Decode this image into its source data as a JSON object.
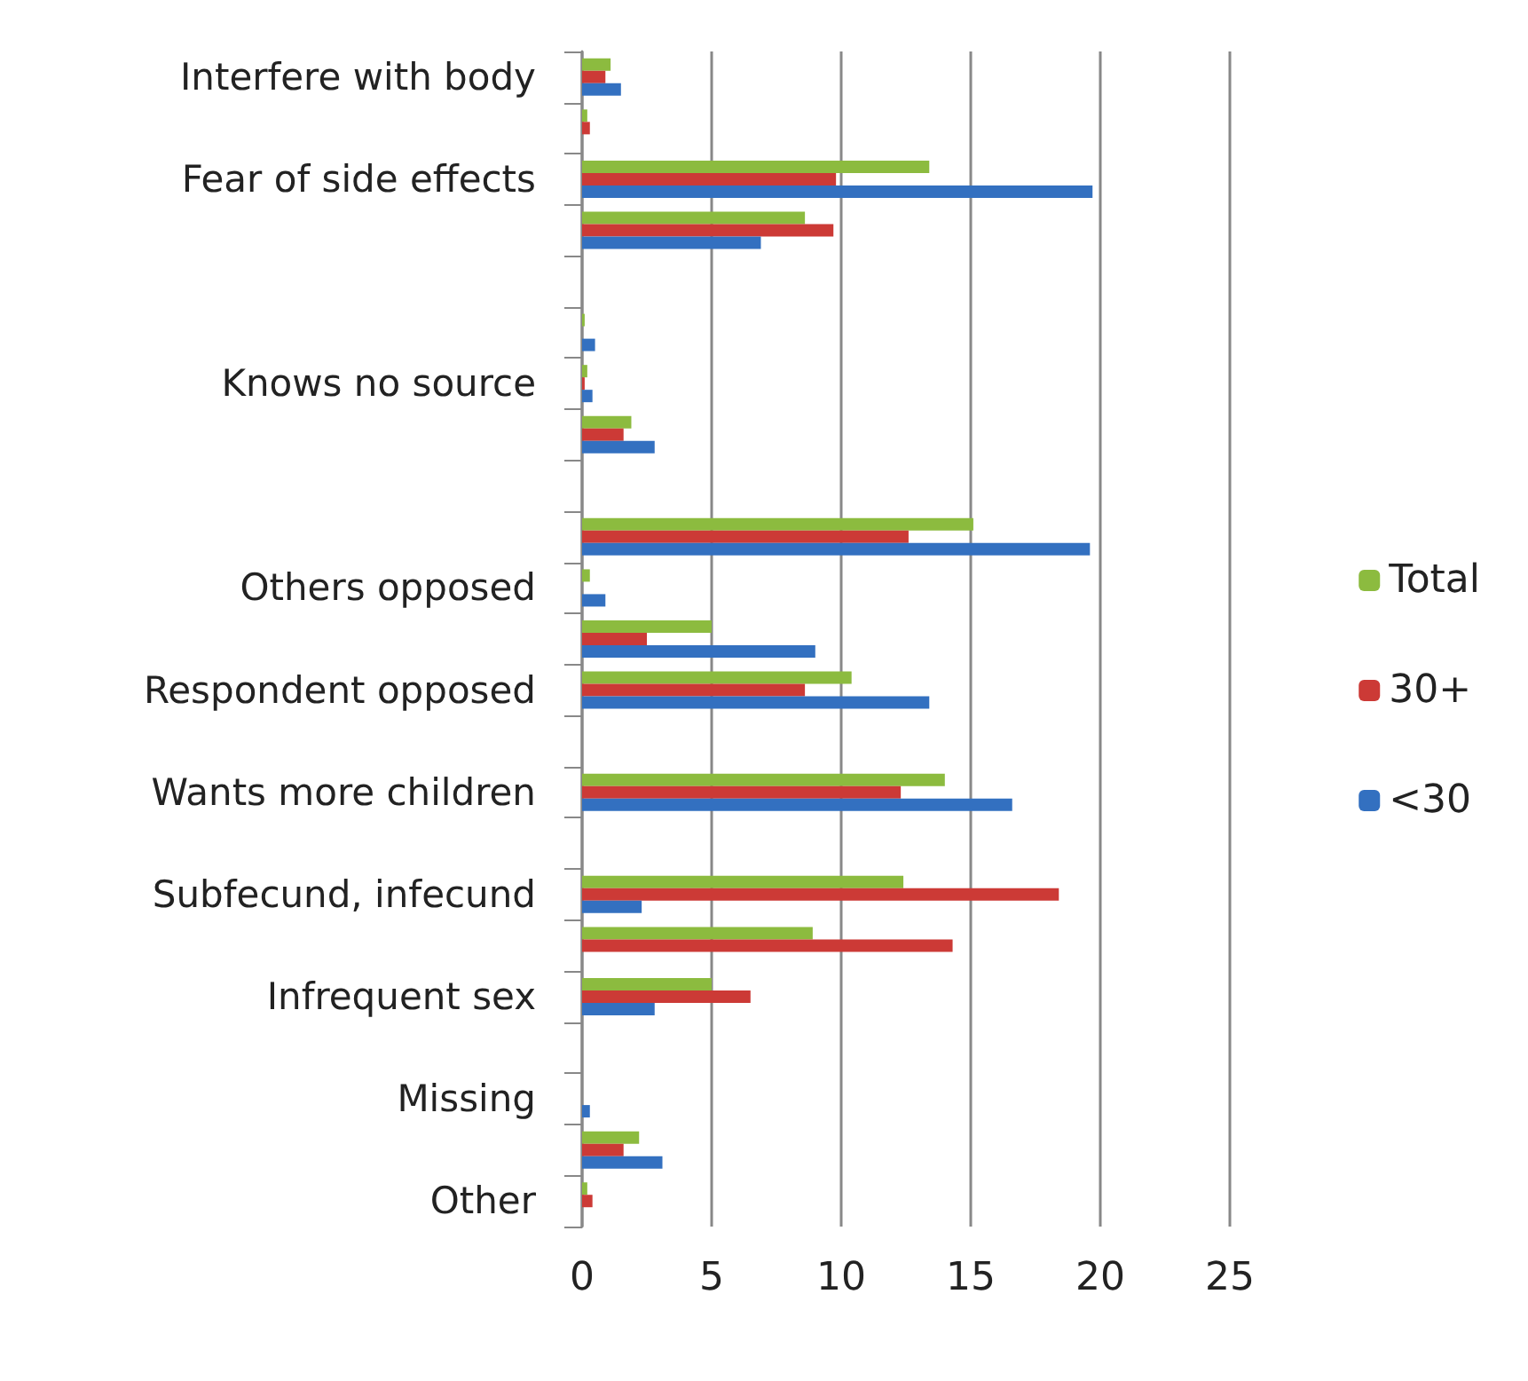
{
  "chart_data": {
    "type": "bar",
    "orientation": "horizontal",
    "categories": [
      "Interfere with body",
      null,
      "Fear of side effects",
      null,
      null,
      null,
      "Knows no source",
      null,
      null,
      null,
      "Others opposed",
      null,
      "Respondent opposed",
      null,
      "Wants more children",
      null,
      "Subfecund, infecund",
      null,
      "Infrequent sex",
      null,
      "Missing",
      null,
      "Other"
    ],
    "series": [
      {
        "name": "Total",
        "color": "#8cbb3f",
        "values": [
          1.1,
          0.2,
          13.4,
          8.6,
          null,
          0.1,
          0.2,
          1.9,
          null,
          15.1,
          0.3,
          5.0,
          10.4,
          null,
          14.0,
          null,
          12.4,
          8.9,
          5.0,
          null,
          null,
          2.2,
          0.2
        ]
      },
      {
        "name": "30+",
        "color": "#cc3a36",
        "values": [
          0.9,
          0.3,
          9.8,
          9.7,
          null,
          null,
          0.1,
          1.6,
          null,
          12.6,
          null,
          2.5,
          8.6,
          null,
          12.3,
          null,
          18.4,
          14.3,
          6.5,
          null,
          null,
          1.6,
          0.4
        ]
      },
      {
        "name": "<30",
        "color": "#3370c0",
        "values": [
          1.5,
          null,
          19.7,
          6.9,
          null,
          0.5,
          0.4,
          2.8,
          null,
          19.6,
          0.9,
          9.0,
          13.4,
          null,
          16.6,
          null,
          2.3,
          null,
          2.8,
          null,
          0.3,
          3.1,
          null
        ]
      }
    ],
    "xlim": [
      0,
      25
    ],
    "xticks": [
      0,
      5,
      10,
      15,
      20,
      25
    ],
    "grid": "x",
    "legend": "right"
  }
}
